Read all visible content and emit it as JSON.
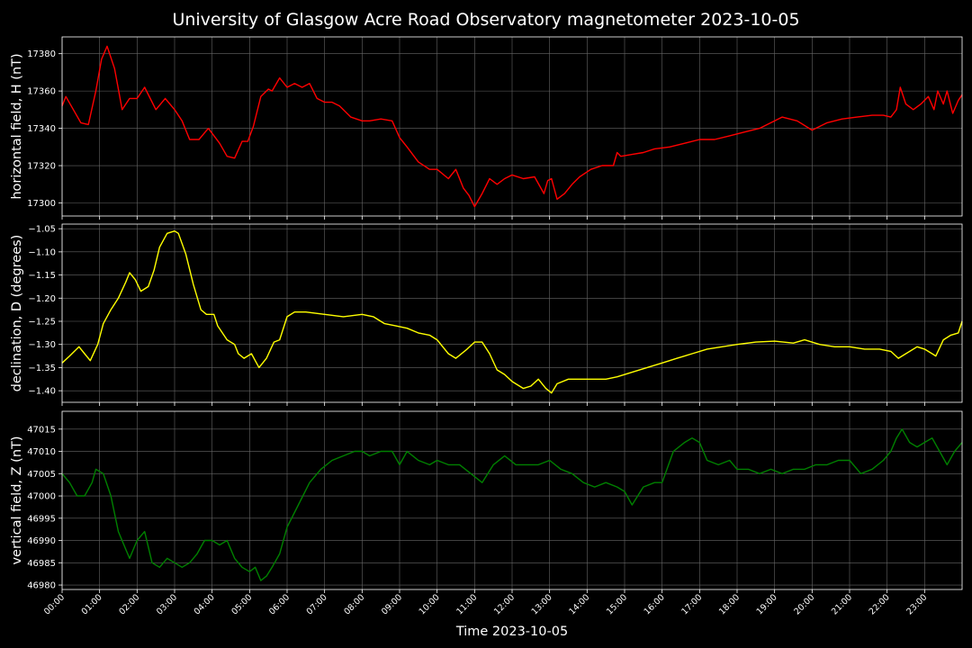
{
  "figure": {
    "title": "University of Glasgow Acre Road Observatory magnetometer 2023-10-05",
    "background": "#000000",
    "text_color": "#ffffff",
    "grid_color": "#666666"
  },
  "chart_data": [
    {
      "type": "line",
      "title": "",
      "ylabel": "horizontal field, H (nT)",
      "xlabel": "",
      "xlim": [
        0,
        24
      ],
      "ylim": [
        17293,
        17389
      ],
      "yticks": [
        17300,
        17320,
        17340,
        17360,
        17380
      ],
      "ytick_labels": [
        "17300",
        "17320",
        "17340",
        "17360",
        "17380"
      ],
      "grid": true,
      "color": "#ff0000",
      "series": [
        {
          "name": "",
          "x": [
            0,
            0.1,
            0.3,
            0.5,
            0.7,
            0.9,
            1.05,
            1.2,
            1.4,
            1.6,
            1.8,
            2.0,
            2.2,
            2.5,
            2.75,
            3.0,
            3.2,
            3.4,
            3.65,
            3.9,
            4.2,
            4.4,
            4.6,
            4.8,
            4.95,
            5.1,
            5.3,
            5.5,
            5.6,
            5.8,
            6.0,
            6.2,
            6.4,
            6.6,
            6.8,
            7.0,
            7.2,
            7.4,
            7.7,
            8.0,
            8.2,
            8.5,
            8.8,
            9.0,
            9.2,
            9.5,
            9.8,
            10.0,
            10.3,
            10.5,
            10.7,
            10.85,
            11.0,
            11.2,
            11.4,
            11.6,
            11.8,
            12.0,
            12.3,
            12.6,
            12.85,
            12.95,
            13.05,
            13.2,
            13.4,
            13.6,
            13.8,
            14.1,
            14.4,
            14.7,
            14.8,
            14.9,
            15.2,
            15.5,
            15.8,
            16.2,
            16.6,
            17.0,
            17.4,
            17.8,
            18.2,
            18.6,
            18.9,
            19.2,
            19.6,
            20.0,
            20.4,
            20.8,
            21.2,
            21.6,
            21.9,
            22.1,
            22.25,
            22.35,
            22.5,
            22.7,
            22.9,
            23.1,
            23.25,
            23.35,
            23.5,
            23.6,
            23.75,
            23.9,
            24.0
          ],
          "values": [
            17352,
            17357,
            17350,
            17343,
            17342,
            17360,
            17377,
            17384,
            17372,
            17350,
            17356,
            17356,
            17362,
            17350,
            17356,
            17350,
            17344,
            17334,
            17334,
            17340,
            17332,
            17325,
            17324,
            17333,
            17333,
            17341,
            17357,
            17361,
            17360,
            17367,
            17362,
            17364,
            17362,
            17364,
            17356,
            17354,
            17354,
            17352,
            17346,
            17344,
            17344,
            17345,
            17344,
            17335,
            17330,
            17322,
            17318,
            17318,
            17313,
            17318,
            17308,
            17304,
            17298,
            17305,
            17313,
            17310,
            17313,
            17315,
            17313,
            17314,
            17305,
            17312,
            17313,
            17302,
            17305,
            17310,
            17314,
            17318,
            17320,
            17320,
            17327,
            17325,
            17326,
            17327,
            17329,
            17330,
            17332,
            17334,
            17334,
            17336,
            17338,
            17340,
            17343,
            17346,
            17344,
            17339,
            17343,
            17345,
            17346,
            17347,
            17347,
            17346,
            17350,
            17362,
            17353,
            17350,
            17353,
            17357,
            17350,
            17360,
            17353,
            17360,
            17348,
            17355,
            17358
          ]
        }
      ]
    },
    {
      "type": "line",
      "title": "",
      "ylabel": "declination, D (degrees)",
      "xlabel": "",
      "xlim": [
        0,
        24
      ],
      "ylim": [
        -1.425,
        -1.04
      ],
      "yticks": [
        -1.4,
        -1.35,
        -1.3,
        -1.25,
        -1.2,
        -1.15,
        -1.1,
        -1.05
      ],
      "ytick_labels": [
        "−1.40",
        "−1.35",
        "−1.30",
        "−1.25",
        "−1.20",
        "−1.15",
        "−1.10",
        "−1.05"
      ],
      "grid": true,
      "color": "#ffff00",
      "series": [
        {
          "name": "",
          "x": [
            0,
            0.2,
            0.45,
            0.6,
            0.75,
            0.95,
            1.1,
            1.3,
            1.5,
            1.7,
            1.8,
            1.95,
            2.1,
            2.3,
            2.45,
            2.6,
            2.8,
            3.0,
            3.1,
            3.3,
            3.5,
            3.7,
            3.85,
            4.05,
            4.15,
            4.4,
            4.6,
            4.7,
            4.85,
            5.05,
            5.25,
            5.45,
            5.65,
            5.8,
            6.0,
            6.2,
            6.5,
            7.0,
            7.5,
            8.0,
            8.3,
            8.6,
            8.9,
            9.2,
            9.5,
            9.8,
            10.0,
            10.3,
            10.5,
            10.8,
            11.0,
            11.2,
            11.4,
            11.6,
            11.8,
            12.0,
            12.3,
            12.5,
            12.7,
            12.9,
            13.05,
            13.2,
            13.5,
            14.0,
            14.5,
            14.8,
            15.2,
            15.6,
            16.0,
            16.4,
            16.8,
            17.2,
            17.6,
            18.0,
            18.5,
            19.0,
            19.5,
            19.8,
            20.2,
            20.6,
            21.0,
            21.4,
            21.8,
            22.1,
            22.3,
            22.5,
            22.8,
            23.0,
            23.2,
            23.3,
            23.5,
            23.7,
            23.9,
            24.0
          ],
          "values": [
            -1.34,
            -1.325,
            -1.305,
            -1.32,
            -1.335,
            -1.3,
            -1.255,
            -1.225,
            -1.2,
            -1.165,
            -1.145,
            -1.16,
            -1.185,
            -1.175,
            -1.14,
            -1.09,
            -1.06,
            -1.055,
            -1.06,
            -1.105,
            -1.17,
            -1.225,
            -1.235,
            -1.235,
            -1.26,
            -1.29,
            -1.3,
            -1.32,
            -1.33,
            -1.32,
            -1.35,
            -1.33,
            -1.295,
            -1.29,
            -1.24,
            -1.23,
            -1.23,
            -1.235,
            -1.24,
            -1.235,
            -1.24,
            -1.255,
            -1.26,
            -1.265,
            -1.275,
            -1.28,
            -1.29,
            -1.32,
            -1.33,
            -1.31,
            -1.295,
            -1.295,
            -1.32,
            -1.355,
            -1.365,
            -1.38,
            -1.395,
            -1.39,
            -1.375,
            -1.395,
            -1.405,
            -1.385,
            -1.375,
            -1.375,
            -1.375,
            -1.37,
            -1.36,
            -1.35,
            -1.34,
            -1.33,
            -1.32,
            -1.31,
            -1.305,
            -1.3,
            -1.295,
            -1.293,
            -1.297,
            -1.29,
            -1.3,
            -1.305,
            -1.305,
            -1.31,
            -1.31,
            -1.315,
            -1.33,
            -1.32,
            -1.305,
            -1.31,
            -1.32,
            -1.325,
            -1.29,
            -1.28,
            -1.275,
            -1.25
          ]
        }
      ]
    },
    {
      "type": "line",
      "title": "",
      "ylabel": "vertical field, Z (nT)",
      "xlabel": "Time 2023-10-05",
      "xlim": [
        0,
        24
      ],
      "ylim": [
        46979,
        47019
      ],
      "yticks": [
        46980,
        46985,
        46990,
        46995,
        47000,
        47005,
        47010,
        47015
      ],
      "ytick_labels": [
        "46980",
        "46985",
        "46990",
        "46995",
        "47000",
        "47005",
        "47010",
        "47015"
      ],
      "xticks": [
        0,
        1,
        2,
        3,
        4,
        5,
        6,
        7,
        8,
        9,
        10,
        11,
        12,
        13,
        14,
        15,
        16,
        17,
        18,
        19,
        20,
        21,
        22,
        23
      ],
      "xtick_labels": [
        "00:00",
        "01:00",
        "02:00",
        "03:00",
        "04:00",
        "05:00",
        "06:00",
        "07:00",
        "08:00",
        "09:00",
        "10:00",
        "11:00",
        "12:00",
        "13:00",
        "14:00",
        "15:00",
        "16:00",
        "17:00",
        "18:00",
        "19:00",
        "20:00",
        "21:00",
        "22:00",
        "23:00"
      ],
      "grid": true,
      "color": "#008000",
      "series": [
        {
          "name": "",
          "x": [
            0,
            0.2,
            0.4,
            0.6,
            0.8,
            0.9,
            1.1,
            1.3,
            1.5,
            1.7,
            1.8,
            2.0,
            2.2,
            2.4,
            2.6,
            2.8,
            3.0,
            3.2,
            3.4,
            3.6,
            3.8,
            4.0,
            4.2,
            4.4,
            4.6,
            4.8,
            5.0,
            5.15,
            5.3,
            5.45,
            5.6,
            5.8,
            6.0,
            6.3,
            6.6,
            6.9,
            7.2,
            7.5,
            7.8,
            8.0,
            8.2,
            8.5,
            8.8,
            9.0,
            9.2,
            9.5,
            9.8,
            10.0,
            10.3,
            10.6,
            10.9,
            11.2,
            11.5,
            11.8,
            12.1,
            12.4,
            12.7,
            13.0,
            13.3,
            13.6,
            13.9,
            14.2,
            14.5,
            14.8,
            15.0,
            15.2,
            15.5,
            15.8,
            16.0,
            16.3,
            16.6,
            16.8,
            17.0,
            17.2,
            17.5,
            17.8,
            18.0,
            18.3,
            18.6,
            18.9,
            19.2,
            19.5,
            19.8,
            20.1,
            20.4,
            20.7,
            21.0,
            21.3,
            21.6,
            21.9,
            22.1,
            22.25,
            22.4,
            22.6,
            22.8,
            23.0,
            23.2,
            23.4,
            23.6,
            23.8,
            24.0
          ],
          "values": [
            47005,
            47003,
            47000,
            47000,
            47003,
            47006,
            47005,
            47000,
            46992,
            46988,
            46986,
            46990,
            46992,
            46985,
            46984,
            46986,
            46985,
            46984,
            46985,
            46987,
            46990,
            46990,
            46989,
            46990,
            46986,
            46984,
            46983,
            46984,
            46981,
            46982,
            46984,
            46987,
            46993,
            46998,
            47003,
            47006,
            47008,
            47009,
            47010,
            47010,
            47009,
            47010,
            47010,
            47007,
            47010,
            47008,
            47007,
            47008,
            47007,
            47007,
            47005,
            47003,
            47007,
            47009,
            47007,
            47007,
            47007,
            47008,
            47006,
            47005,
            47003,
            47002,
            47003,
            47002,
            47001,
            46998,
            47002,
            47003,
            47003,
            47010,
            47012,
            47013,
            47012,
            47008,
            47007,
            47008,
            47006,
            47006,
            47005,
            47006,
            47005,
            47006,
            47006,
            47007,
            47007,
            47008,
            47008,
            47005,
            47006,
            47008,
            47010,
            47013,
            47015,
            47012,
            47011,
            47012,
            47013,
            47010,
            47007,
            47010,
            47012
          ]
        }
      ]
    }
  ]
}
